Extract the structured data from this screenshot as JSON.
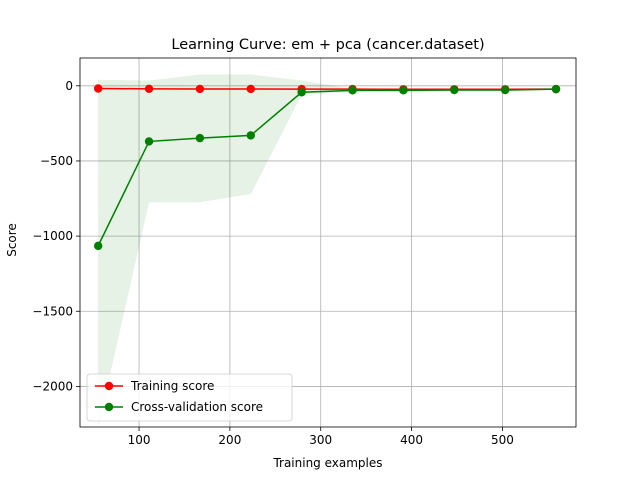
{
  "chart_data": {
    "type": "line",
    "title": "Learning Curve: em + pca (cancer.dataset)",
    "xlabel": "Training examples",
    "ylabel": "Score",
    "xlim": [
      35,
      581
    ],
    "ylim": [
      -2270,
      185
    ],
    "grid": true,
    "legend_position": "lower-left",
    "x_ticks": [
      100,
      200,
      300,
      400,
      500
    ],
    "y_ticks": [
      0,
      -500,
      -1000,
      -1500,
      -2000
    ],
    "x_tick_labels": [
      "100",
      "200",
      "300",
      "400",
      "500"
    ],
    "y_tick_labels": [
      "0",
      "−500",
      "−1000",
      "−1500",
      "−2000"
    ],
    "x": [
      55,
      111,
      167,
      223,
      279,
      335,
      391,
      447,
      503,
      559
    ],
    "series": [
      {
        "name": "Training score",
        "color": "#ff0000",
        "values": [
          -18,
          -20,
          -21,
          -21,
          -22,
          -22,
          -23,
          -23,
          -23,
          -22
        ],
        "band_lower": [
          -24,
          -25,
          -26,
          -26,
          -26,
          -27,
          -27,
          -27,
          -27,
          -26
        ],
        "band_upper": [
          -12,
          -14,
          -15,
          -15,
          -16,
          -16,
          -17,
          -17,
          -17,
          -17
        ]
      },
      {
        "name": "Cross-validation score",
        "color": "#008000",
        "values": [
          -1065,
          -370,
          -348,
          -330,
          -43,
          -30,
          -30,
          -28,
          -28,
          -22
        ],
        "band_lower": [
          -2270,
          -775,
          -775,
          -720,
          -60,
          -40,
          -40,
          -35,
          -35,
          -28
        ],
        "band_upper": [
          40,
          35,
          75,
          75,
          35,
          -20,
          -20,
          -20,
          -18,
          -14
        ]
      }
    ]
  }
}
